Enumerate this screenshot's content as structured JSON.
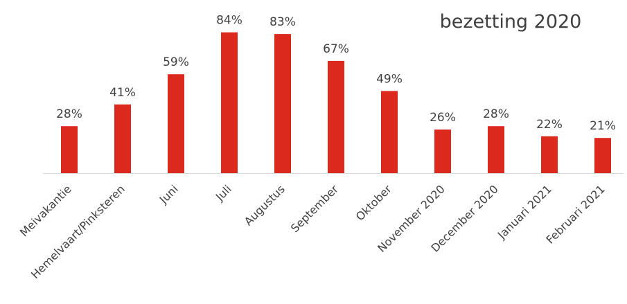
{
  "chart_data": {
    "type": "bar",
    "title": "bezetting 2020",
    "xlabel": "",
    "ylabel": "",
    "categories": [
      "Meivakantie",
      "Hemelvaart/Pinksteren",
      "Juni",
      "Juli",
      "Augustus",
      "September",
      "Oktober",
      "November 2020",
      "December 2020",
      "Januari 2021",
      "Februari 2021"
    ],
    "values": [
      28,
      41,
      59,
      84,
      83,
      67,
      49,
      26,
      28,
      22,
      21
    ],
    "value_labels": [
      "28%",
      "41%",
      "59%",
      "84%",
      "83%",
      "67%",
      "49%",
      "26%",
      "28%",
      "22%",
      "21%"
    ],
    "ylim": [
      0,
      100
    ],
    "unit": "%",
    "grid": false,
    "legend": "none",
    "bar_color": "#dc291e",
    "axis_color": "#d9d9d9"
  }
}
